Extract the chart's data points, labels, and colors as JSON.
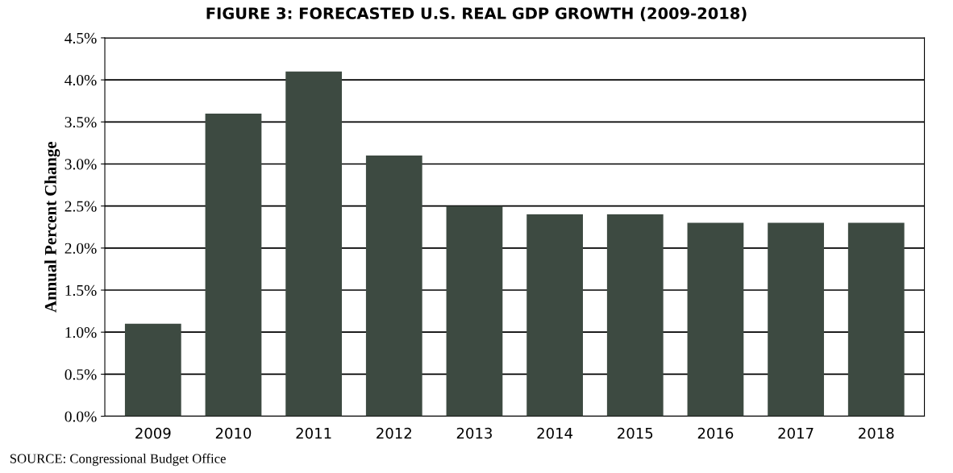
{
  "chart_data": {
    "type": "bar",
    "title": "FIGURE 3: FORECASTED U.S. REAL GDP GROWTH (2009-2018)",
    "ylabel": "Annual Percent Change",
    "categories": [
      "2009",
      "2010",
      "2011",
      "2012",
      "2013",
      "2014",
      "2015",
      "2016",
      "2017",
      "2018"
    ],
    "values": [
      1.1,
      3.6,
      4.1,
      3.1,
      2.5,
      2.4,
      2.4,
      2.3,
      2.3,
      2.3
    ],
    "color": "#3d4a41",
    "ylim": [
      0,
      4.5
    ],
    "yticks": [
      {
        "value": 0,
        "label": "0.0%"
      },
      {
        "value": 0.5,
        "label": "0.5%"
      },
      {
        "value": 1,
        "label": "1.0%"
      },
      {
        "value": 1.5,
        "label": "1.5%"
      },
      {
        "value": 2,
        "label": "2.0%"
      },
      {
        "value": 2.5,
        "label": "2.5%"
      },
      {
        "value": 3,
        "label": "3.0%"
      },
      {
        "value": 3.5,
        "label": "3.5%"
      },
      {
        "value": 4,
        "label": "4.0%"
      },
      {
        "value": 4.5,
        "label": "4.5%"
      }
    ],
    "grid": "y",
    "annotations": [
      "SOURCE: Congressional Budget Office"
    ]
  }
}
